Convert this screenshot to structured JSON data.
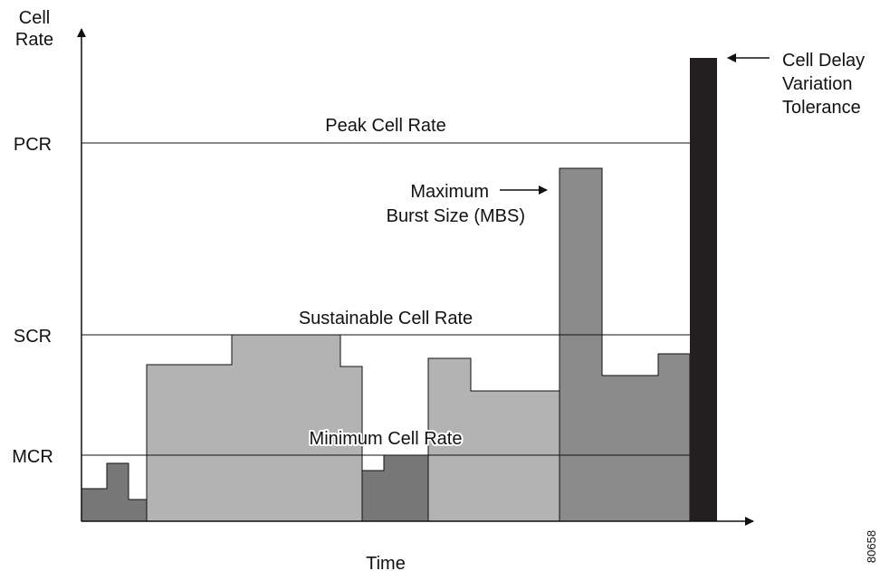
{
  "axes": {
    "y_label_line1": "Cell",
    "y_label_line2": "Rate",
    "x_label": "Time"
  },
  "levels": {
    "pcr": "PCR",
    "scr": "SCR",
    "mcr": "MCR"
  },
  "rate_lines": {
    "peak": "Peak Cell Rate",
    "sustainable": "Sustainable Cell Rate",
    "minimum": "Minimum Cell Rate"
  },
  "annotations": {
    "mbs_line1": "Maximum",
    "mbs_line2": "Burst Size (MBS)",
    "cdvt_line1": "Cell Delay",
    "cdvt_line2": "Variation",
    "cdvt_line3": "Tolerance"
  },
  "figure_id": "80658",
  "colors": {
    "dark_gray": "#777777",
    "light_gray": "#b3b3b3",
    "mid_gray": "#8b8b8b",
    "black_bar": "#231f20",
    "line": "#111111"
  }
}
